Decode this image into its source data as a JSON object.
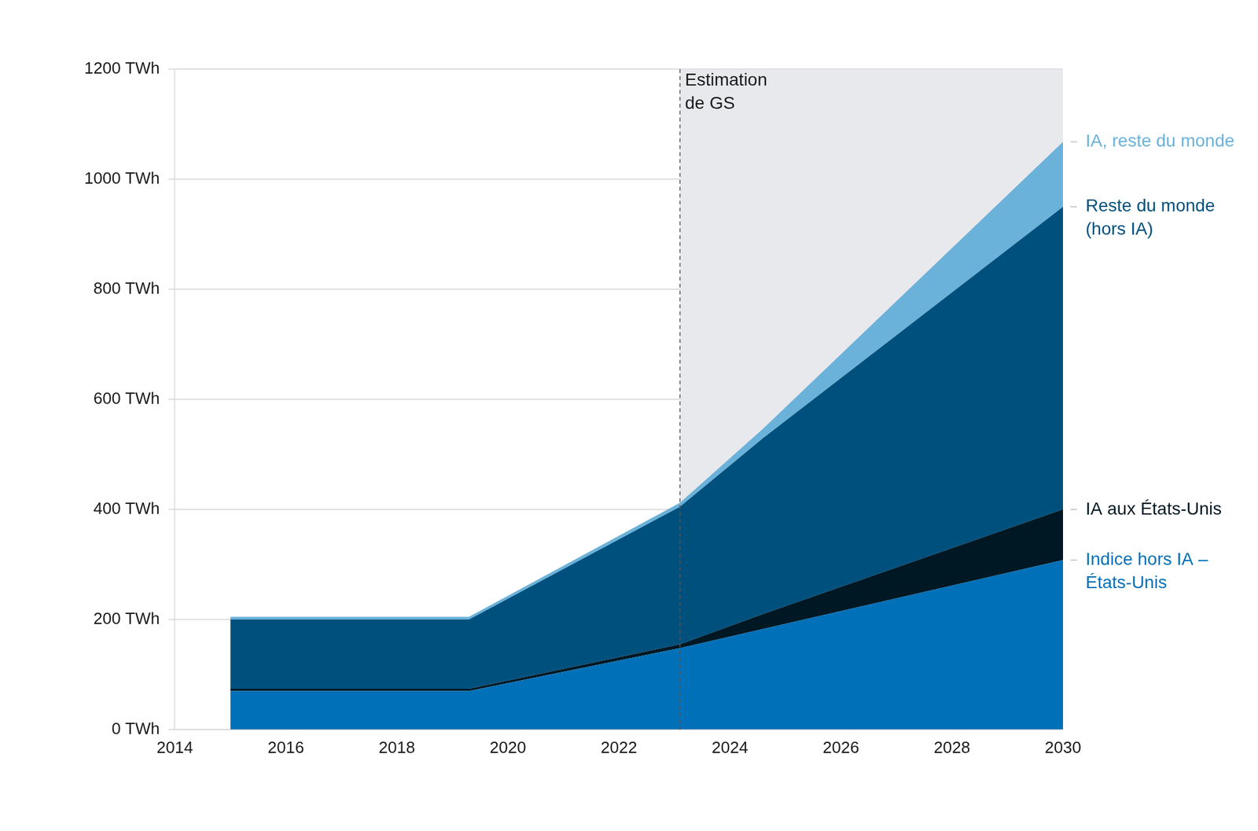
{
  "chart_data": {
    "type": "area",
    "stacked": true,
    "grid": "y",
    "x": [
      2015,
      2019.3,
      2023.1,
      2024.6,
      2030
    ],
    "xlim": [
      2014,
      2030
    ],
    "xticks": [
      2014,
      2016,
      2018,
      2020,
      2022,
      2024,
      2026,
      2028,
      2030
    ],
    "ylim": [
      0,
      1200
    ],
    "yticks": [
      {
        "value": 0,
        "label": "0 TWh"
      },
      {
        "value": 200,
        "label": "200 TWh"
      },
      {
        "value": 400,
        "label": "400 TWh"
      },
      {
        "value": 600,
        "label": "600 TWh"
      },
      {
        "value": 800,
        "label": "800 TWh"
      },
      {
        "value": 1000,
        "label": "1000 TWh"
      },
      {
        "value": 1200,
        "label": "1200 TWh"
      }
    ],
    "annotation": {
      "text": "Estimation de GS",
      "x": 2023.1
    },
    "series": [
      {
        "name": "Indice hors IA – États-Unis",
        "color": "#0070b8",
        "values": [
          70,
          70,
          148,
          183,
          308
        ]
      },
      {
        "name": "IA aux États-Unis",
        "color": "#001824",
        "values": [
          4,
          4,
          7,
          27,
          92
        ]
      },
      {
        "name": "Reste du monde (hors IA)",
        "color": "#00507e",
        "values": [
          126,
          126,
          250,
          320,
          550
        ]
      },
      {
        "name": "IA, reste du monde",
        "color": "#6ab2da",
        "values": [
          5,
          5,
          7,
          17,
          118
        ]
      }
    ]
  }
}
